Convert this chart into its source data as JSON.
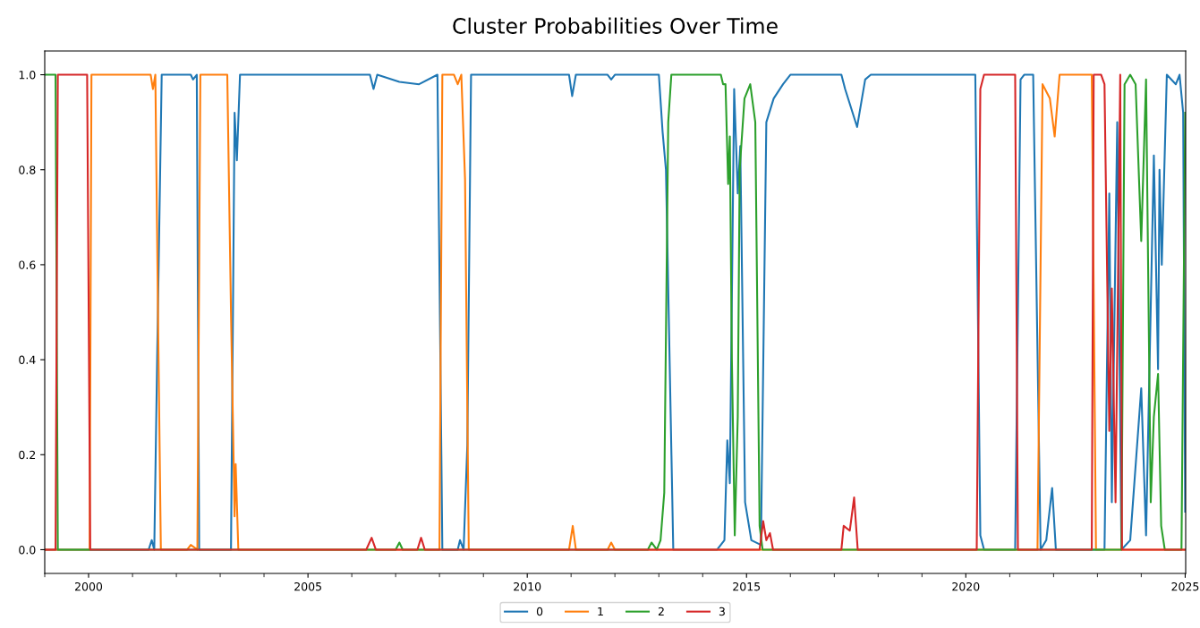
{
  "chart_data": {
    "type": "line",
    "title": "Cluster Probabilities Over Time",
    "legend": "bottom",
    "grid": false,
    "xlim": [
      "1999-01-01",
      "2025-01-05"
    ],
    "ylim": [
      -0.05,
      1.05
    ],
    "xticks": [
      {
        "value": "2000-01-01",
        "label": "2000"
      },
      {
        "value": "2005-01-01",
        "label": "2005"
      },
      {
        "value": "2010-01-01",
        "label": "2010"
      },
      {
        "value": "2015-01-01",
        "label": "2015"
      },
      {
        "value": "2020-01-01",
        "label": "2020"
      },
      {
        "value": "2025-01-01",
        "label": "2025"
      }
    ],
    "yticks": [
      {
        "value": 0,
        "label": "0.0"
      },
      {
        "value": 0.2,
        "label": "0.2"
      },
      {
        "value": 0.4,
        "label": "0.4"
      },
      {
        "value": 0.6,
        "label": "0.6"
      },
      {
        "value": 0.8,
        "label": "0.8"
      },
      {
        "value": 1,
        "label": "1.0"
      }
    ],
    "series": [
      {
        "name": "0",
        "color": "#1f77b4",
        "x": [
          "1999-01-01",
          "2001-05-15",
          "2001-06-10",
          "2001-07-01",
          "2001-07-25",
          "2001-09-01",
          "2002-05-01",
          "2002-05-20",
          "2002-06-20",
          "2002-07-10",
          "2003-04-01",
          "2003-05-01",
          "2003-05-20",
          "2003-06-15",
          "2006-06-01",
          "2006-07-01",
          "2006-08-01",
          "2007-02-01",
          "2007-07-15",
          "2007-12-15",
          "2008-01-25",
          "2008-06-01",
          "2008-06-20",
          "2008-07-20",
          "2008-08-20",
          "2008-09-20",
          "2010-12-15",
          "2011-01-10",
          "2011-02-10",
          "2011-11-01",
          "2011-12-01",
          "2012-01-01",
          "2013-01-01",
          "2013-02-01",
          "2013-03-01",
          "2013-05-01",
          "2014-05-01",
          "2014-07-01",
          "2014-07-25",
          "2014-08-15",
          "2014-09-20",
          "2014-10-20",
          "2014-11-10",
          "2014-12-20",
          "2015-02-10",
          "2015-05-01",
          "2015-06-15",
          "2015-08-15",
          "2015-11-01",
          "2016-01-01",
          "2017-03-01",
          "2017-04-01",
          "2017-07-10",
          "2017-09-15",
          "2017-11-01",
          "2020-03-20",
          "2020-05-01",
          "2020-06-01",
          "2021-02-15",
          "2021-04-01",
          "2021-05-01",
          "2021-07-15",
          "2021-09-15",
          "2021-11-01",
          "2021-12-20",
          "2022-01-20",
          "2023-03-01",
          "2023-04-10",
          "2023-05-01",
          "2023-06-15",
          "2023-07-20",
          "2023-10-01",
          "2024-01-01",
          "2024-02-10",
          "2024-04-15",
          "2024-05-20",
          "2024-06-01",
          "2024-06-20",
          "2024-08-01",
          "2024-10-15",
          "2024-11-15",
          "2024-12-15",
          "2025-01-01"
        ],
        "values": [
          0,
          0,
          0.02,
          0,
          0.4,
          1,
          1,
          0.99,
          1,
          0,
          0,
          0.92,
          0.82,
          1,
          1,
          0.97,
          1,
          0.985,
          0.98,
          1,
          0,
          0,
          0.02,
          0,
          0.22,
          1,
          1,
          0.955,
          1,
          1,
          0.99,
          1,
          1,
          0.88,
          0.8,
          0,
          0,
          0.02,
          0.23,
          0.14,
          0.97,
          0.75,
          0.85,
          0.1,
          0.02,
          0.01,
          0.9,
          0.95,
          0.98,
          1,
          1,
          0.97,
          0.89,
          0.99,
          1,
          1,
          0.03,
          0,
          0,
          0.99,
          1,
          1,
          0,
          0.02,
          0.13,
          0,
          0,
          0.75,
          0.1,
          0.9,
          0,
          0.02,
          0.34,
          0.03,
          0.83,
          0.38,
          0.8,
          0.6,
          1,
          0.98,
          1,
          0.92,
          0.08
        ]
      },
      {
        "name": "1",
        "color": "#ff7f0e",
        "x": [
          "1999-01-01",
          "2000-01-10",
          "2000-01-25",
          "2001-06-01",
          "2001-06-20",
          "2001-07-10",
          "2001-08-01",
          "2001-08-25",
          "2002-04-01",
          "2002-05-01",
          "2002-06-25",
          "2002-07-20",
          "2003-03-01",
          "2003-04-01",
          "2003-05-01",
          "2003-05-10",
          "2003-06-01",
          "2008-01-01",
          "2008-01-25",
          "2008-05-01",
          "2008-06-01",
          "2008-07-01",
          "2008-08-01",
          "2008-09-01",
          "2010-12-15",
          "2011-01-15",
          "2011-02-10",
          "2011-11-01",
          "2011-12-01",
          "2012-01-01",
          "2021-08-20",
          "2021-10-01",
          "2021-12-01",
          "2022-01-10",
          "2022-02-20",
          "2022-11-15",
          "2022-12-20",
          "2025-01-01"
        ],
        "values": [
          0,
          0,
          1,
          1,
          0.97,
          1,
          0.5,
          0,
          0,
          0.01,
          0,
          1,
          1,
          0.5,
          0.07,
          0.18,
          0,
          0,
          1,
          1,
          0.98,
          1,
          0.78,
          0,
          0,
          0.05,
          0,
          0,
          0.015,
          0,
          0,
          0.98,
          0.95,
          0.87,
          1,
          1,
          0,
          0
        ]
      },
      {
        "name": "2",
        "color": "#2ca02c",
        "x": [
          "1999-01-01",
          "1999-04-01",
          "1999-04-20",
          "2007-01-01",
          "2007-02-01",
          "2007-03-01",
          "2012-10-01",
          "2012-11-01",
          "2012-12-15",
          "2013-01-15",
          "2013-02-15",
          "2013-03-20",
          "2013-04-15",
          "2014-06-01",
          "2014-06-20",
          "2014-07-10",
          "2014-08-01",
          "2014-08-15",
          "2014-09-01",
          "2014-09-25",
          "2014-10-20",
          "2014-11-05",
          "2014-12-15",
          "2015-02-01",
          "2015-03-15",
          "2015-04-20",
          "2015-05-15",
          "2023-07-20",
          "2023-08-15",
          "2023-10-01",
          "2023-11-15",
          "2024-01-01",
          "2024-02-10",
          "2024-03-20",
          "2024-04-15",
          "2024-05-20",
          "2024-06-15",
          "2024-07-15",
          "2024-12-01",
          "2025-01-01"
        ],
        "values": [
          1,
          1,
          0,
          0,
          0.015,
          0,
          0,
          0.015,
          0,
          0.02,
          0.12,
          0.9,
          1,
          1,
          0.98,
          0.98,
          0.77,
          0.87,
          0.4,
          0.03,
          0.28,
          0.8,
          0.95,
          0.98,
          0.9,
          0.05,
          0,
          0,
          0.98,
          1,
          0.98,
          0.65,
          0.99,
          0.1,
          0.28,
          0.37,
          0.05,
          0,
          0,
          0.92
        ]
      },
      {
        "name": "3",
        "color": "#d62728",
        "x": [
          "1999-01-01",
          "1999-04-01",
          "1999-04-20",
          "1999-12-20",
          "2000-01-15",
          "2006-05-01",
          "2006-06-15",
          "2006-07-20",
          "2007-07-01",
          "2007-08-01",
          "2007-09-01",
          "2015-04-20",
          "2015-05-20",
          "2015-06-15",
          "2015-07-15",
          "2015-08-10",
          "2017-03-01",
          "2017-03-20",
          "2017-05-10",
          "2017-06-15",
          "2017-07-15",
          "2020-04-01",
          "2020-05-01",
          "2020-06-01",
          "2021-02-15",
          "2021-03-10",
          "2022-11-15",
          "2022-12-01",
          "2023-02-01",
          "2023-03-01",
          "2023-04-10",
          "2023-05-01",
          "2023-06-01",
          "2023-07-10",
          "2023-07-25",
          "2025-01-01"
        ],
        "values": [
          0,
          0,
          1,
          1,
          0,
          0,
          0.025,
          0,
          0,
          0.025,
          0,
          0,
          0.06,
          0.02,
          0.035,
          0,
          0,
          0.05,
          0.04,
          0.11,
          0,
          0,
          0.97,
          1,
          1,
          0,
          0,
          1,
          1,
          0.98,
          0.25,
          0.55,
          0.1,
          1,
          0,
          0
        ]
      }
    ]
  }
}
